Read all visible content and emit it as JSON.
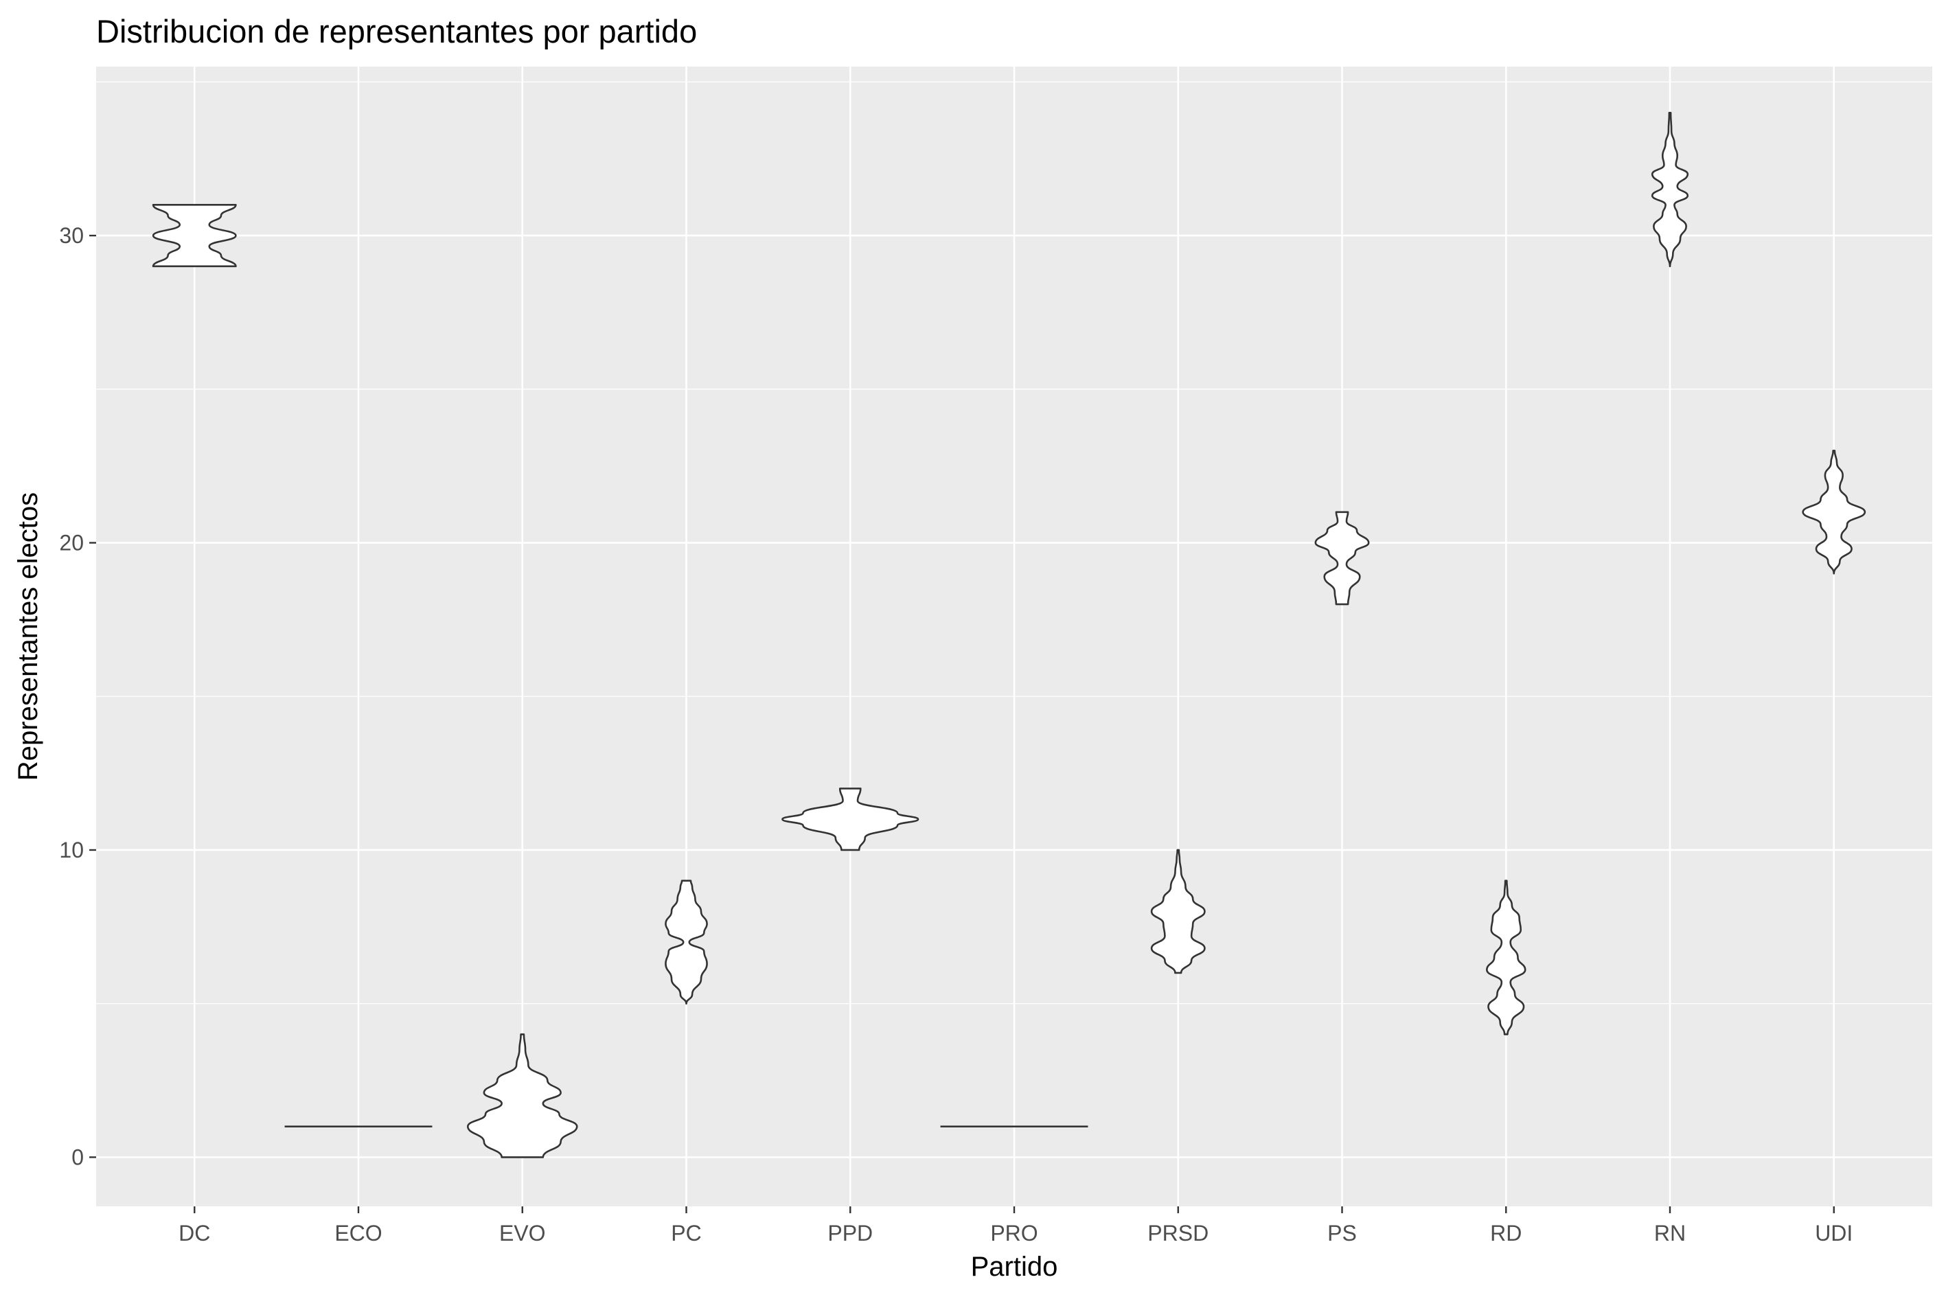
{
  "chart_data": {
    "type": "violin",
    "title": "Distribucion de representantes por partido",
    "xlabel": "Partido",
    "ylabel": "Representantes electos",
    "categories": [
      "DC",
      "ECO",
      "EVO",
      "PC",
      "PPD",
      "PRO",
      "PRSD",
      "PS",
      "RD",
      "RN",
      "UDI"
    ],
    "yticks": [
      0,
      10,
      20,
      30
    ],
    "ylim": [
      -1.6,
      35.5
    ],
    "grid": true,
    "panel_background": "#ebebeb",
    "grid_color": "#ffffff",
    "outline_color": "#333333",
    "violins": [
      {
        "category": "DC",
        "profile": [
          [
            29,
            0.28
          ],
          [
            29.35,
            0.18
          ],
          [
            29.65,
            0.1
          ],
          [
            30.0,
            0.28
          ],
          [
            30.35,
            0.1
          ],
          [
            30.65,
            0.18
          ],
          [
            31,
            0.28
          ]
        ]
      },
      {
        "category": "ECO",
        "profile": [
          [
            1,
            0.5
          ]
        ]
      },
      {
        "category": "EVO",
        "profile": [
          [
            0,
            0.14
          ],
          [
            0.5,
            0.26
          ],
          [
            1.0,
            0.37
          ],
          [
            1.4,
            0.25
          ],
          [
            1.75,
            0.14
          ],
          [
            2.1,
            0.26
          ],
          [
            2.5,
            0.17
          ],
          [
            3.0,
            0.04
          ],
          [
            3.5,
            0.02
          ],
          [
            4,
            0.01
          ]
        ]
      },
      {
        "category": "PC",
        "profile": [
          [
            5,
            0.0
          ],
          [
            5.3,
            0.04
          ],
          [
            5.8,
            0.1
          ],
          [
            6.3,
            0.14
          ],
          [
            6.7,
            0.12
          ],
          [
            7.0,
            0.02
          ],
          [
            7.3,
            0.12
          ],
          [
            7.6,
            0.14
          ],
          [
            8.0,
            0.1
          ],
          [
            8.4,
            0.06
          ],
          [
            8.8,
            0.04
          ],
          [
            9,
            0.03
          ]
        ]
      },
      {
        "category": "PPD",
        "profile": [
          [
            10,
            0.06
          ],
          [
            10.4,
            0.1
          ],
          [
            10.8,
            0.32
          ],
          [
            11.0,
            0.46
          ],
          [
            11.2,
            0.32
          ],
          [
            11.6,
            0.05
          ],
          [
            12,
            0.07
          ]
        ]
      },
      {
        "category": "PRO",
        "profile": [
          [
            1,
            0.5
          ]
        ]
      },
      {
        "category": "PRSD",
        "profile": [
          [
            6,
            0.02
          ],
          [
            6.4,
            0.09
          ],
          [
            6.8,
            0.18
          ],
          [
            7.2,
            0.09
          ],
          [
            7.6,
            0.1
          ],
          [
            8.0,
            0.18
          ],
          [
            8.4,
            0.1
          ],
          [
            8.8,
            0.05
          ],
          [
            9.3,
            0.02
          ],
          [
            9.7,
            0.01
          ],
          [
            10,
            0.005
          ]
        ]
      },
      {
        "category": "PS",
        "profile": [
          [
            18,
            0.04
          ],
          [
            18.4,
            0.05
          ],
          [
            18.9,
            0.12
          ],
          [
            19.3,
            0.03
          ],
          [
            19.7,
            0.09
          ],
          [
            20.0,
            0.18
          ],
          [
            20.4,
            0.1
          ],
          [
            20.7,
            0.03
          ],
          [
            21,
            0.04
          ]
        ]
      },
      {
        "category": "RD",
        "profile": [
          [
            4,
            0.01
          ],
          [
            4.4,
            0.04
          ],
          [
            4.9,
            0.12
          ],
          [
            5.3,
            0.06
          ],
          [
            5.7,
            0.03
          ],
          [
            6.1,
            0.13
          ],
          [
            6.5,
            0.08
          ],
          [
            7.0,
            0.03
          ],
          [
            7.4,
            0.1
          ],
          [
            7.8,
            0.09
          ],
          [
            8.2,
            0.04
          ],
          [
            8.6,
            0.01
          ],
          [
            9,
            0.005
          ]
        ]
      },
      {
        "category": "RN",
        "profile": [
          [
            29,
            0.0
          ],
          [
            29.4,
            0.02
          ],
          [
            29.9,
            0.07
          ],
          [
            30.3,
            0.11
          ],
          [
            30.7,
            0.05
          ],
          [
            31.0,
            0.03
          ],
          [
            31.3,
            0.12
          ],
          [
            31.6,
            0.05
          ],
          [
            32.0,
            0.12
          ],
          [
            32.3,
            0.04
          ],
          [
            32.6,
            0.05
          ],
          [
            33.0,
            0.03
          ],
          [
            33.4,
            0.01
          ],
          [
            34,
            0.005
          ]
        ]
      },
      {
        "category": "UDI",
        "profile": [
          [
            19,
            0.0
          ],
          [
            19.4,
            0.04
          ],
          [
            19.8,
            0.12
          ],
          [
            20.2,
            0.05
          ],
          [
            20.6,
            0.09
          ],
          [
            21.0,
            0.21
          ],
          [
            21.4,
            0.09
          ],
          [
            21.8,
            0.04
          ],
          [
            22.2,
            0.06
          ],
          [
            22.6,
            0.02
          ],
          [
            23,
            0.005
          ]
        ]
      }
    ]
  }
}
